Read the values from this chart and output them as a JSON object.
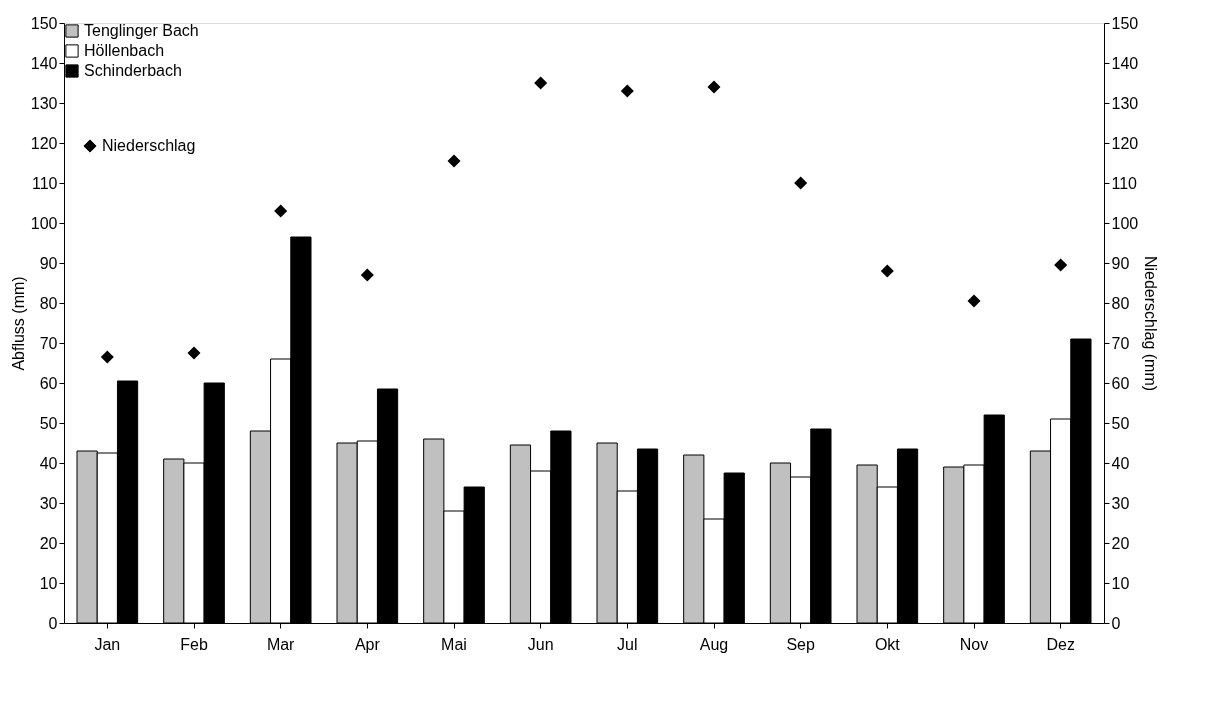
{
  "chart_data": {
    "type": "bar",
    "categories": [
      "Jan",
      "Feb",
      "Mar",
      "Apr",
      "Mai",
      "Jun",
      "Jul",
      "Aug",
      "Sep",
      "Okt",
      "Nov",
      "Dez"
    ],
    "ylabel": "Abfluss (mm)",
    "y2label": "Niederschlag (mm)",
    "ylim": [
      0,
      150
    ],
    "yticks": [
      0,
      10,
      20,
      30,
      40,
      50,
      60,
      70,
      80,
      90,
      100,
      110,
      120,
      130,
      140,
      150
    ],
    "y2lim": [
      0,
      150
    ],
    "y2ticks": [
      0,
      10,
      20,
      30,
      40,
      50,
      60,
      70,
      80,
      90,
      100,
      110,
      120,
      130,
      140,
      150
    ],
    "grid": false,
    "legend": "top left",
    "series": [
      {
        "name": "Tenglinger Bach",
        "color": "#c0c0c0",
        "values": [
          43,
          41,
          48,
          45,
          46,
          44.5,
          45,
          42,
          40,
          39.5,
          39,
          43
        ]
      },
      {
        "name": "Höllenbach",
        "color": "#ffffff",
        "values": [
          42.5,
          40,
          66,
          45.5,
          28,
          38,
          33,
          26,
          36.5,
          34,
          39.5,
          51
        ]
      },
      {
        "name": "Schinderbach",
        "color": "#000000",
        "values": [
          60.5,
          60,
          96.5,
          58.5,
          34,
          48,
          43.5,
          37.5,
          48.5,
          43.5,
          52,
          71
        ]
      },
      {
        "name": "Niederschlag",
        "color": "#000000",
        "type": "scatter",
        "axis": "y2",
        "marker": "diamond",
        "values": [
          66.5,
          67.5,
          103,
          87,
          115.5,
          135,
          133,
          134,
          110,
          88,
          80.5,
          89.5
        ]
      }
    ]
  }
}
